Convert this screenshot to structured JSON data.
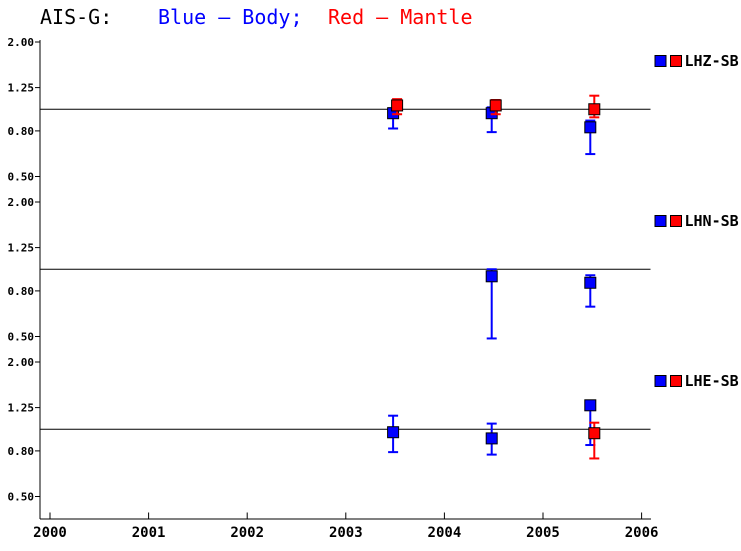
{
  "title": {
    "prefix": "AIS-G:",
    "body_legend": "Blue — Body;",
    "mantle_legend": "Red — Mantle"
  },
  "colors": {
    "body": "#0000ff",
    "mantle": "#ff0000",
    "axis": "#000000",
    "background": "#ffffff"
  },
  "chart_data": {
    "type": "scatter",
    "title": "AIS-G: Blue — Body; Red — Mantle",
    "x_axis": {
      "ticks": [
        "2000",
        "2001",
        "2002",
        "2003",
        "2004",
        "2005",
        "2006"
      ],
      "range": [
        2000,
        2006.1
      ]
    },
    "y_axis": {
      "scale": "log",
      "tick_labels": [
        "2.00",
        "1.25",
        "0.80",
        "0.50"
      ],
      "tick_values": [
        2.0,
        1.25,
        0.8,
        0.5
      ],
      "range": [
        0.5,
        2.0
      ],
      "reference_line": 1.0
    },
    "series": [
      {
        "id": "body",
        "name": "Body",
        "color": "#0000ff"
      },
      {
        "id": "mantle",
        "name": "Mantle",
        "color": "#ff0000"
      }
    ],
    "panels": [
      {
        "label": "LHZ-SB",
        "points": [
          {
            "series": "body",
            "year": 2003.5,
            "value": 0.96,
            "err_lo": 0.82,
            "err_hi": 1.01
          },
          {
            "series": "mantle",
            "year": 2003.5,
            "value": 1.04,
            "err_lo": 0.95,
            "err_hi": 1.11
          },
          {
            "series": "body",
            "year": 2004.5,
            "value": 0.96,
            "err_lo": 0.79,
            "err_hi": 1.02
          },
          {
            "series": "mantle",
            "year": 2004.5,
            "value": 1.04,
            "err_lo": 0.95,
            "err_hi": 1.1
          },
          {
            "series": "body",
            "year": 2005.5,
            "value": 0.83,
            "err_lo": 0.63,
            "err_hi": 0.89
          },
          {
            "series": "mantle",
            "year": 2005.5,
            "value": 1.0,
            "err_lo": 0.92,
            "err_hi": 1.15
          }
        ]
      },
      {
        "label": "LHN-SB",
        "points": [
          {
            "series": "body",
            "year": 2004.5,
            "value": 0.93,
            "err_lo": 0.49,
            "err_hi": 1.0
          },
          {
            "series": "body",
            "year": 2005.5,
            "value": 0.87,
            "err_lo": 0.68,
            "err_hi": 0.94
          }
        ]
      },
      {
        "label": "LHE-SB",
        "points": [
          {
            "series": "body",
            "year": 2003.5,
            "value": 0.97,
            "err_lo": 0.79,
            "err_hi": 1.15
          },
          {
            "series": "body",
            "year": 2004.5,
            "value": 0.91,
            "err_lo": 0.77,
            "err_hi": 1.06
          },
          {
            "series": "body",
            "year": 2005.5,
            "value": 1.28,
            "err_lo": 0.85,
            "err_hi": 1.28
          },
          {
            "series": "mantle",
            "year": 2005.5,
            "value": 0.96,
            "err_lo": 0.74,
            "err_hi": 1.07
          }
        ]
      }
    ]
  }
}
